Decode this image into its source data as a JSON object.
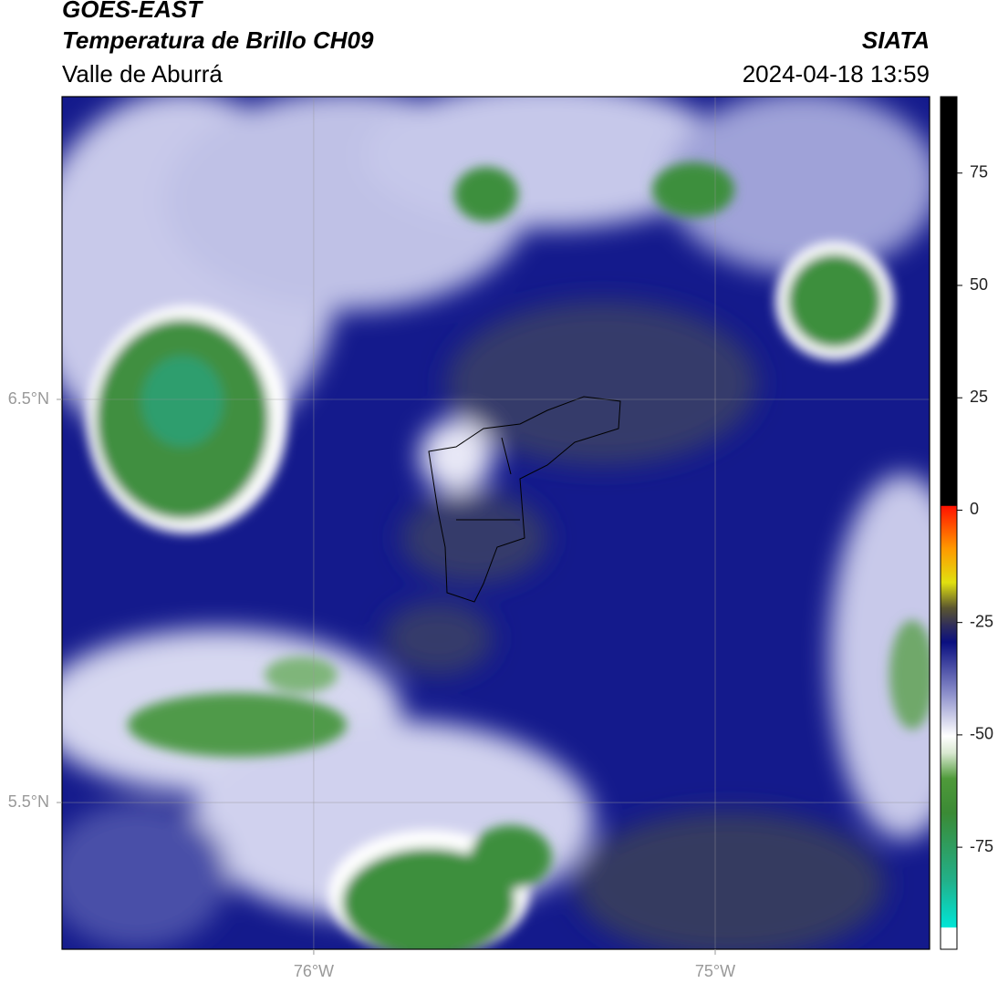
{
  "header": {
    "title": "GOES-EAST",
    "subtitle": "Temperatura de Brillo CH09",
    "region": "Valle de Aburrá",
    "source": "SIATA",
    "datetime": "2024-04-18 13:59"
  },
  "map": {
    "xlim": [
      -76.627,
      -74.466
    ],
    "ylim": [
      5.136,
      7.251
    ],
    "xticks": [
      {
        "value": -76,
        "label": "76°W"
      },
      {
        "value": -75,
        "label": "75°W"
      }
    ],
    "yticks": [
      {
        "value": 6.5,
        "label": "6.5°N"
      },
      {
        "value": 5.5,
        "label": "5.5°N"
      }
    ],
    "grid": true
  },
  "colorbar": {
    "lim": [
      -97.7,
      92.0
    ],
    "ticks": [
      75,
      50,
      25,
      0,
      -25,
      -50,
      -75
    ]
  }
}
